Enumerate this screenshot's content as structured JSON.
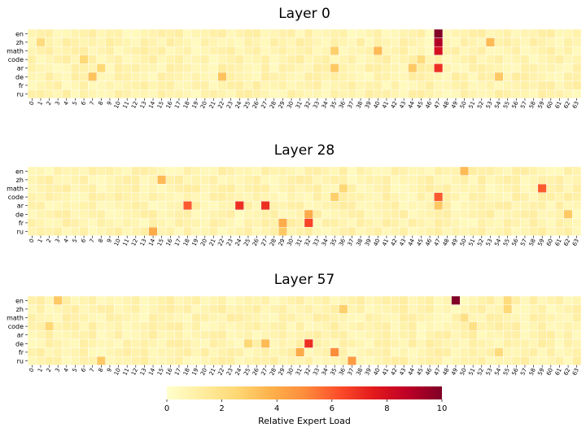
{
  "chart_data": {
    "type": "heatmap",
    "rows": [
      "en",
      "zh",
      "math",
      "code",
      "ar",
      "de",
      "fr",
      "ru"
    ],
    "x_tick_labels": [
      "0",
      "1",
      "2",
      "3",
      "4",
      "5",
      "6",
      "7",
      "8",
      "9",
      "10",
      "11",
      "12",
      "13",
      "14",
      "15",
      "16",
      "17",
      "18",
      "19",
      "20",
      "21",
      "22",
      "23",
      "24",
      "25",
      "26",
      "27",
      "28",
      "29",
      "30",
      "31",
      "32",
      "33",
      "34",
      "35",
      "36",
      "37",
      "38",
      "39",
      "40",
      "41",
      "42",
      "43",
      "44",
      "45",
      "46",
      "47",
      "48",
      "49",
      "50",
      "51",
      "52",
      "53",
      "54",
      "55",
      "56",
      "57",
      "58",
      "59",
      "60",
      "61",
      "62",
      "63"
    ],
    "n_columns": 64,
    "base_level": 1.0,
    "colormap": [
      "#ffffcc",
      "#ffeda0",
      "#fed976",
      "#feb24c",
      "#fd8d3c",
      "#fc4e2a",
      "#e31a1c",
      "#bd0026",
      "#800026"
    ],
    "value_range": [
      0,
      10
    ],
    "panels": [
      {
        "title": "Layer 0",
        "highlights": [
          {
            "row": "en",
            "col": 47,
            "value": 10.0
          },
          {
            "row": "zh",
            "col": 47,
            "value": 9.0
          },
          {
            "row": "math",
            "col": 47,
            "value": 8.0
          },
          {
            "row": "ar",
            "col": 47,
            "value": 7.0
          },
          {
            "row": "zh",
            "col": 53,
            "value": 3.5
          },
          {
            "row": "math",
            "col": 40,
            "value": 3.5
          },
          {
            "row": "de",
            "col": 7,
            "value": 3.2
          },
          {
            "row": "de",
            "col": 22,
            "value": 3.2
          },
          {
            "row": "ar",
            "col": 35,
            "value": 3.0
          },
          {
            "row": "ar",
            "col": 44,
            "value": 3.0
          },
          {
            "row": "de",
            "col": 54,
            "value": 3.0
          },
          {
            "row": "math",
            "col": 35,
            "value": 2.8
          },
          {
            "row": "code",
            "col": 6,
            "value": 2.5
          },
          {
            "row": "ar",
            "col": 8,
            "value": 2.5
          },
          {
            "row": "zh",
            "col": 1,
            "value": 2.3
          },
          {
            "row": "code",
            "col": 45,
            "value": 2.3
          }
        ]
      },
      {
        "title": "Layer 28",
        "highlights": [
          {
            "row": "ar",
            "col": 24,
            "value": 7.0
          },
          {
            "row": "ar",
            "col": 27,
            "value": 7.0
          },
          {
            "row": "fr",
            "col": 32,
            "value": 6.5
          },
          {
            "row": "code",
            "col": 47,
            "value": 6.0
          },
          {
            "row": "ar",
            "col": 18,
            "value": 6.0
          },
          {
            "row": "math",
            "col": 59,
            "value": 6.0
          },
          {
            "row": "fr",
            "col": 29,
            "value": 4.0
          },
          {
            "row": "de",
            "col": 32,
            "value": 4.0
          },
          {
            "row": "ru",
            "col": 14,
            "value": 4.0
          },
          {
            "row": "zh",
            "col": 15,
            "value": 3.5
          },
          {
            "row": "en",
            "col": 50,
            "value": 3.5
          },
          {
            "row": "ru",
            "col": 29,
            "value": 3.0
          },
          {
            "row": "ar",
            "col": 47,
            "value": 3.0
          },
          {
            "row": "de",
            "col": 62,
            "value": 3.0
          },
          {
            "row": "code",
            "col": 35,
            "value": 2.8
          },
          {
            "row": "math",
            "col": 36,
            "value": 2.5
          }
        ]
      },
      {
        "title": "Layer 57",
        "highlights": [
          {
            "row": "en",
            "col": 49,
            "value": 10.0
          },
          {
            "row": "de",
            "col": 32,
            "value": 7.0
          },
          {
            "row": "fr",
            "col": 35,
            "value": 5.0
          },
          {
            "row": "ru",
            "col": 37,
            "value": 4.5
          },
          {
            "row": "fr",
            "col": 31,
            "value": 4.0
          },
          {
            "row": "de",
            "col": 27,
            "value": 3.5
          },
          {
            "row": "en",
            "col": 3,
            "value": 3.0
          },
          {
            "row": "ru",
            "col": 8,
            "value": 3.0
          },
          {
            "row": "zh",
            "col": 36,
            "value": 2.8
          },
          {
            "row": "code",
            "col": 2,
            "value": 2.5
          },
          {
            "row": "de",
            "col": 25,
            "value": 2.5
          },
          {
            "row": "zh",
            "col": 55,
            "value": 2.5
          },
          {
            "row": "fr",
            "col": 54,
            "value": 2.3
          },
          {
            "row": "en",
            "col": 55,
            "value": 2.3
          },
          {
            "row": "math",
            "col": 50,
            "value": 2.0
          },
          {
            "row": "code",
            "col": 51,
            "value": 2.0
          }
        ]
      }
    ],
    "colorbar": {
      "ticks": [
        0,
        2,
        4,
        6,
        8,
        10
      ],
      "label": "Relative Expert Load",
      "orientation": "horizontal",
      "placement": "bottom"
    }
  }
}
